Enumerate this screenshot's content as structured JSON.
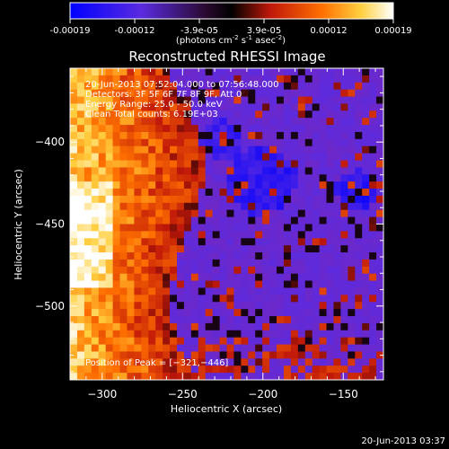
{
  "colorbar": {
    "ticks": [
      "-0.00019",
      "-0.00012",
      "-3.9e-05",
      "3.9e-05",
      "0.00012",
      "0.00019"
    ],
    "unit_main": "(photons cm",
    "unit_exp1": "-2",
    "unit_mid": " s",
    "unit_exp2": "-1",
    "unit_mid2": " asec",
    "unit_exp3": "-2",
    "unit_close": ")"
  },
  "chart_data": {
    "type": "heatmap",
    "title": "Reconstructed RHESSI Image",
    "xlabel": "Heliocentric X (arcsec)",
    "ylabel": "Heliocentric Y (arcsec)",
    "xlim": [
      -320,
      -125
    ],
    "ylim": [
      -545,
      -355
    ],
    "x_ticks": [
      -300,
      -250,
      -200,
      -150
    ],
    "y_ticks": [
      -400,
      -450,
      -500
    ],
    "x_tick_labels": [
      "−300",
      "−250",
      "−200",
      "−150"
    ],
    "y_tick_labels": [
      "−400",
      "−450",
      "−500"
    ],
    "colorbar_range": [
      -0.00019,
      0.00019
    ],
    "colors": [
      "#0000ff",
      "#6a2bd4",
      "#2a0a30",
      "#b0180c",
      "#ff6e00",
      "#ffd040",
      "#ffffff"
    ],
    "annotations": [
      "20-Jun-2013 07:52:04.000 to 07:56:48.000",
      "Detectors: 3F 5F 6F 7F 8F 9F, Att 0",
      "Energy Range: 25.0 - 50.0 keV",
      "Clean     Total counts: 6.19E+03"
    ],
    "peak_label": "Position of Peak = [−321,−446]",
    "peak": [
      -321,
      -446
    ]
  },
  "footer": {
    "timestamp": "20-Jun-2013 03:37"
  }
}
